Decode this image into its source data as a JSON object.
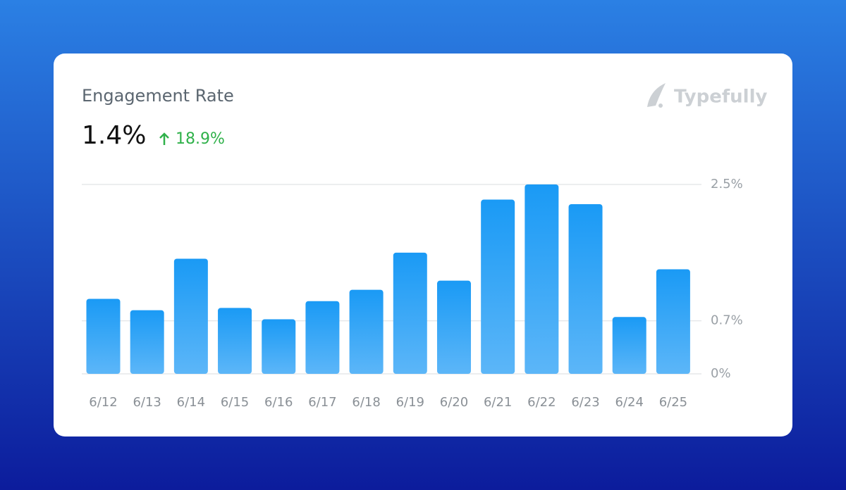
{
  "header": {
    "metric": "1.4%",
    "change": "18.9%",
    "brand": "Typefully"
  },
  "chart_data": {
    "type": "bar",
    "title": "Engagement Rate",
    "categories": [
      "6/12",
      "6/13",
      "6/14",
      "6/15",
      "6/16",
      "6/17",
      "6/18",
      "6/19",
      "6/20",
      "6/21",
      "6/22",
      "6/23",
      "6/24",
      "6/25"
    ],
    "values": [
      0.99,
      0.84,
      1.52,
      0.87,
      0.72,
      0.96,
      1.11,
      1.6,
      1.23,
      2.3,
      2.5,
      2.24,
      0.75,
      1.38
    ],
    "color": "#1a9af5",
    "ylim": [
      0,
      2.5
    ],
    "yticks": [
      {
        "value": 0,
        "label": "0%"
      },
      {
        "value": 0.7,
        "label": "0.7%"
      },
      {
        "value": 2.5,
        "label": "2.5%"
      }
    ],
    "grid": true
  }
}
